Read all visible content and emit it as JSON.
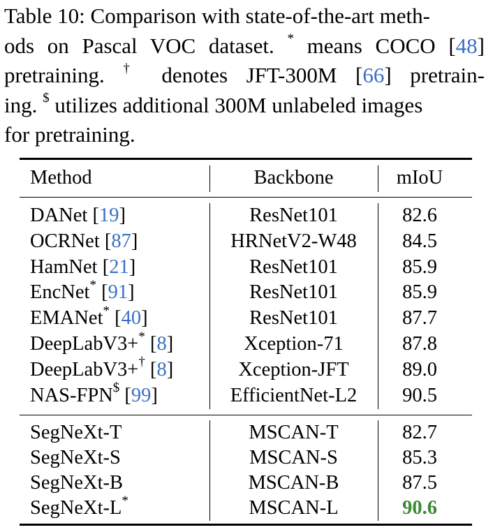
{
  "caption": {
    "line1": "Table 10: Comparison with state-of-the-art meth-",
    "line2_pre": "ods on Pascal VOC dataset. ",
    "line2_sup": "*",
    "line2_mid": " means COCO [",
    "line2_cite": "48",
    "line2_end": "]",
    "line3_pre": "pretraining. ",
    "line3_sup": "†",
    "line3_mid": " denotes JFT-300M [",
    "line3_cite": "66",
    "line3_end": "] pretrain-",
    "line4_pre": "ing. ",
    "line4_sup": "$",
    "line4_rest": " utilizes additional 300M unlabeled images",
    "line5": "for pretraining."
  },
  "table": {
    "headers": {
      "method": "Method",
      "backbone": "Backbone",
      "miou": "mIoU"
    },
    "group1": [
      {
        "method": "DANet",
        "sup": "",
        "cite": "19",
        "backbone": "ResNet101",
        "miou": "82.6"
      },
      {
        "method": "OCRNet",
        "sup": "",
        "cite": "87",
        "backbone": "HRNetV2-W48",
        "miou": "84.5"
      },
      {
        "method": "HamNet",
        "sup": "",
        "cite": "21",
        "backbone": "ResNet101",
        "miou": "85.9"
      },
      {
        "method": "EncNet",
        "sup": "*",
        "cite": "91",
        "backbone": "ResNet101",
        "miou": "85.9"
      },
      {
        "method": "EMANet",
        "sup": "*",
        "cite": "40",
        "backbone": "ResNet101",
        "miou": "87.7"
      },
      {
        "method": "DeepLabV3+",
        "sup": "*",
        "cite": "8",
        "backbone": "Xception-71",
        "miou": "87.8"
      },
      {
        "method": "DeepLabV3+",
        "sup": "†",
        "cite": "8",
        "backbone": "Xception-JFT",
        "miou": "89.0"
      },
      {
        "method": "NAS-FPN",
        "sup": "$",
        "cite": "99",
        "backbone": "EfficientNet-L2",
        "miou": "90.5"
      }
    ],
    "group2": [
      {
        "method": "SegNeXt-T",
        "sup": "",
        "backbone": "MSCAN-T",
        "miou": "82.7"
      },
      {
        "method": "SegNeXt-S",
        "sup": "",
        "backbone": "MSCAN-S",
        "miou": "85.3"
      },
      {
        "method": "SegNeXt-B",
        "sup": "",
        "backbone": "MSCAN-B",
        "miou": "87.5"
      },
      {
        "method": "SegNeXt-L",
        "sup": "*",
        "backbone": "MSCAN-L",
        "miou": "90.6"
      }
    ],
    "colors": {
      "cite": "#3a6fc4",
      "best": "#3b8a34"
    }
  }
}
